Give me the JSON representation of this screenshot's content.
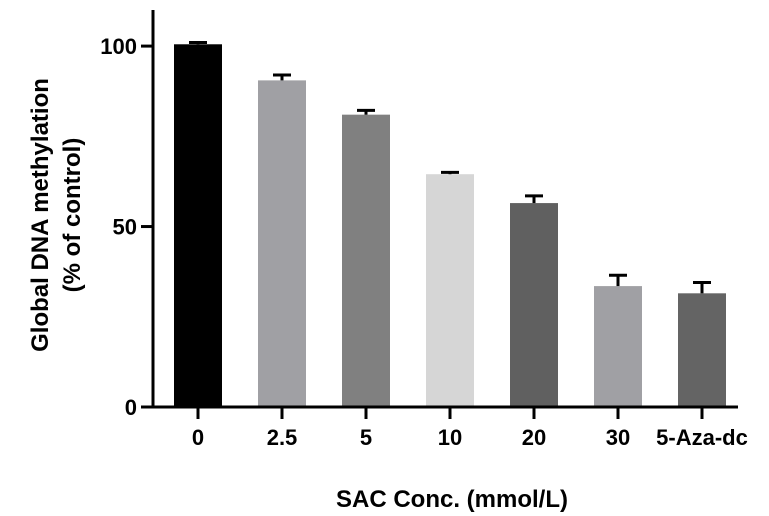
{
  "chart_data": {
    "type": "bar",
    "title": "",
    "xlabel": "SAC Conc. (mmol/L)",
    "ylabel_line1": "Global DNA methylation",
    "ylabel_line2": "(% of control)",
    "categories": [
      "0",
      "2.5",
      "5",
      "10",
      "20",
      "30",
      "5-Aza-dc"
    ],
    "values": [
      100.5,
      90.5,
      81,
      64.5,
      56.5,
      33.5,
      31.5
    ],
    "error_upper": [
      0.5,
      1.5,
      1.2,
      0.5,
      2,
      3,
      3
    ],
    "bar_colors": [
      "#000000",
      "#a0a0a4",
      "#808080",
      "#d6d6d6",
      "#606060",
      "#a0a0a4",
      "#646464"
    ],
    "ylim": [
      0,
      110
    ],
    "y_ticks": [
      0,
      50,
      100
    ],
    "grid": false,
    "legend": "none"
  }
}
